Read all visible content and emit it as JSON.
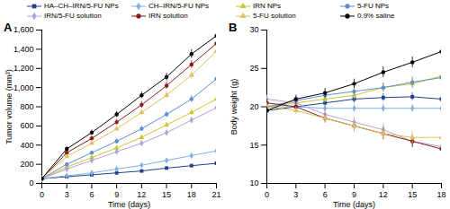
{
  "chart_data": [
    {
      "type": "line",
      "title": "A",
      "x_label": "Time (days)",
      "y_label": "Tumor volume (mm³)",
      "x": [
        0,
        3,
        6,
        9,
        12,
        15,
        18,
        21
      ],
      "xlim": [
        0,
        21
      ],
      "xticks": [
        0,
        3,
        6,
        9,
        12,
        15,
        18,
        21
      ],
      "ylim": [
        0,
        1600
      ],
      "yticks": [
        0,
        200,
        400,
        600,
        800,
        {
          "value": 1000,
          "label": "1,000"
        },
        {
          "value": 1200,
          "label": "1,200"
        },
        {
          "value": 1400,
          "label": "1,400"
        },
        {
          "value": 1600,
          "label": "1,600"
        }
      ],
      "grid": false,
      "legend": "top",
      "series": [
        {
          "name": "HA–CH–IRN/5-FU NPs",
          "color": "#1f3f8f",
          "marker": "square",
          "values": [
            50,
            70,
            90,
            110,
            130,
            160,
            185,
            210
          ],
          "errors": [
            5,
            8,
            10,
            10,
            12,
            14,
            15,
            18
          ]
        },
        {
          "name": "CH–IRN/5-FU NPs",
          "color": "#7fb0e0",
          "marker": "diamond",
          "values": [
            50,
            80,
            110,
            150,
            190,
            240,
            290,
            340
          ],
          "errors": [
            5,
            8,
            10,
            12,
            14,
            16,
            18,
            20
          ]
        },
        {
          "name": "IRN NPs",
          "color": "#c8c832",
          "marker": "triangle",
          "values": [
            50,
            170,
            270,
            370,
            480,
            610,
            740,
            880
          ],
          "errors": [
            5,
            15,
            20,
            22,
            25,
            28,
            30,
            35
          ]
        },
        {
          "name": "5-FU NPs",
          "color": "#5a8fd0",
          "marker": "circle",
          "values": [
            50,
            200,
            320,
            440,
            570,
            720,
            880,
            1090
          ],
          "errors": [
            5,
            15,
            20,
            25,
            28,
            30,
            35,
            40
          ]
        },
        {
          "name": "IRN/5-FU solution",
          "color": "#b4a0d8",
          "marker": "diamond",
          "values": [
            50,
            150,
            240,
            330,
            420,
            530,
            660,
            790
          ],
          "errors": [
            5,
            12,
            18,
            20,
            22,
            25,
            30,
            35
          ]
        },
        {
          "name": "IRN solution",
          "color": "#8b1a1a",
          "marker": "circle",
          "values": [
            50,
            320,
            470,
            640,
            820,
            1020,
            1240,
            1460
          ],
          "errors": [
            5,
            20,
            25,
            30,
            35,
            38,
            40,
            45
          ]
        },
        {
          "name": "5-FU solution",
          "color": "#e0c060",
          "marker": "triangle",
          "values": [
            50,
            280,
            420,
            570,
            740,
            920,
            1130,
            1380
          ],
          "errors": [
            5,
            18,
            22,
            28,
            32,
            35,
            40,
            45
          ]
        },
        {
          "name": "0.9% saline",
          "color": "#000000",
          "marker": "circle",
          "values": [
            50,
            360,
            530,
            720,
            920,
            1110,
            1350,
            1540
          ],
          "errors": [
            5,
            20,
            28,
            32,
            35,
            40,
            45,
            50
          ]
        }
      ]
    },
    {
      "type": "line",
      "title": "B",
      "x_label": "Time (days)",
      "y_label": "Body weight (g)",
      "x": [
        0,
        3,
        6,
        9,
        12,
        15,
        18
      ],
      "xlim": [
        0,
        18
      ],
      "xticks": [
        0,
        3,
        6,
        9,
        12,
        15,
        18
      ],
      "ylim": [
        10,
        30
      ],
      "yticks": [
        10,
        15,
        20,
        25,
        30
      ],
      "grid": false,
      "series": [
        {
          "name": "HA–CH–IRN/5-FU NPs",
          "color": "#1f3f8f",
          "marker": "square",
          "values": [
            19.5,
            20,
            20.5,
            21,
            21.2,
            21.3,
            21
          ],
          "errors": [
            0.4,
            0.4,
            0.5,
            0.5,
            0.5,
            0.5,
            0.6
          ]
        },
        {
          "name": "CH–IRN/5-FU NPs",
          "color": "#7fb0e0",
          "marker": "diamond",
          "values": [
            20,
            20,
            19.8,
            19.8,
            19.8,
            19.8,
            19.8
          ],
          "errors": [
            0.4,
            0.4,
            0.5,
            0.5,
            0.5,
            0.5,
            0.6
          ]
        },
        {
          "name": "IRN NPs",
          "color": "#c8c832",
          "marker": "triangle",
          "values": [
            20,
            20.5,
            21,
            21.5,
            22.5,
            23,
            24
          ],
          "errors": [
            0.4,
            0.5,
            0.5,
            0.6,
            0.6,
            0.7,
            0.7
          ]
        },
        {
          "name": "5-FU NPs",
          "color": "#5a8fd0",
          "marker": "circle",
          "values": [
            20,
            20.8,
            21.5,
            22,
            22.5,
            23.2,
            23.8
          ],
          "errors": [
            0.4,
            0.5,
            0.5,
            0.6,
            0.6,
            0.7,
            0.7
          ]
        },
        {
          "name": "IRN/5-FU solution",
          "color": "#b4a0d8",
          "marker": "diamond",
          "values": [
            21,
            20.5,
            19,
            18,
            17,
            15.5,
            14.8
          ],
          "errors": [
            0.5,
            0.5,
            0.6,
            0.7,
            0.8,
            0.8,
            0.9
          ]
        },
        {
          "name": "IRN solution",
          "color": "#8b1a1a",
          "marker": "circle",
          "values": [
            20.5,
            20,
            18.5,
            17.5,
            16.5,
            15.5,
            14.5
          ],
          "errors": [
            0.5,
            0.5,
            0.6,
            0.7,
            0.8,
            0.8,
            0.9
          ]
        },
        {
          "name": "5-FU solution",
          "color": "#e0c060",
          "marker": "triangle",
          "values": [
            20,
            19.5,
            18.5,
            17.5,
            16.5,
            16,
            16
          ],
          "errors": [
            0.5,
            0.5,
            0.6,
            0.7,
            0.7,
            0.8,
            0.8
          ]
        },
        {
          "name": "0.9% saline",
          "color": "#000000",
          "marker": "circle",
          "values": [
            19.5,
            21,
            21.8,
            23,
            24.5,
            25.8,
            27.2
          ],
          "errors": [
            0.5,
            0.5,
            0.6,
            0.6,
            0.7,
            0.7,
            0.8
          ]
        }
      ]
    }
  ]
}
